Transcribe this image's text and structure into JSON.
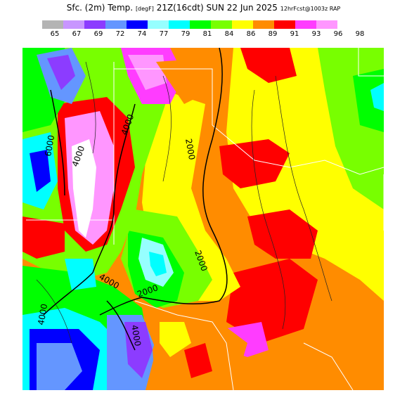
{
  "title": {
    "main": "Sfc. (2m) Temp.",
    "unit": "[degF]",
    "valid": "21Z(16cdt) SUN 22 Jun 2025",
    "run": "12hrFcst@1003z RAP"
  },
  "legend": {
    "colors": [
      "#b4b4b4",
      "#c896ff",
      "#8c3cff",
      "#6496ff",
      "#0000ff",
      "#96ffff",
      "#00ffff",
      "#00ff00",
      "#78ff00",
      "#ffff00",
      "#ff8c00",
      "#ff0000",
      "#ff3cff",
      "#ff96ff"
    ],
    "labels": [
      "65",
      "67",
      "69",
      "72",
      "74",
      "77",
      "79",
      "81",
      "84",
      "86",
      "89",
      "91",
      "93",
      "96",
      "98"
    ]
  },
  "contours": {
    "labels": [
      "6000",
      "4000",
      "4000",
      "2000",
      "2000",
      "2000",
      "4000",
      "4000",
      "4000"
    ]
  }
}
